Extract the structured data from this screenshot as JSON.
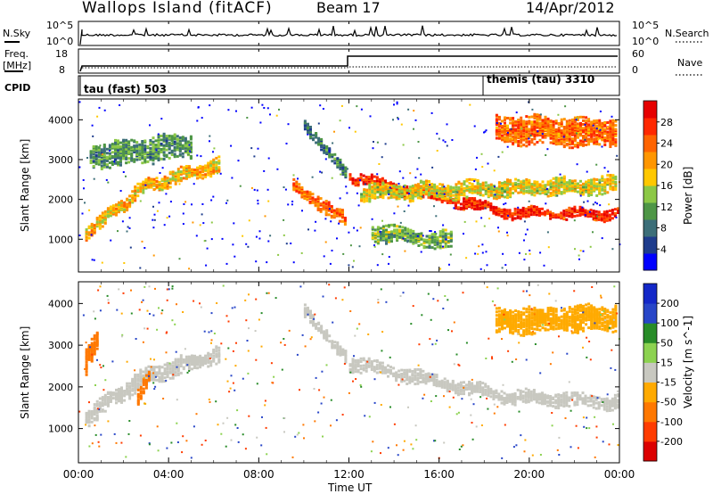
{
  "header": {
    "station": "Wallops Island (fitACF)",
    "beam": "Beam 17",
    "date": "14/Apr/2012"
  },
  "panels": {
    "nsky": {
      "label": "N.Sky",
      "right_label": "N.Search",
      "tick_labels_left": [
        "10^5",
        "10^0"
      ],
      "tick_labels_right": [
        "10^5",
        "10^0"
      ]
    },
    "freq": {
      "label_line1": "Freq.",
      "label_line2": "[MHz]",
      "right_label": "Nave",
      "tick_labels_left": [
        "18",
        "8"
      ],
      "tick_labels_right": [
        "60",
        "0"
      ]
    },
    "cpid": {
      "label": "CPID",
      "modes": [
        {
          "text": "tau (fast) 503",
          "start": "00:00"
        },
        {
          "text": "themis (tau) 3310",
          "start": "18:00"
        }
      ]
    }
  },
  "colors": {
    "power_scale": [
      "#0000ff",
      "#1e3c8c",
      "#3c6e78",
      "#4e9646",
      "#8cc846",
      "#ffc800",
      "#ff9600",
      "#ff6400",
      "#ff2800",
      "#e60000"
    ],
    "velocity_scale": [
      "#1428c8",
      "#2846c8",
      "#288c28",
      "#8cd250",
      "#c8c8c0",
      "#ffaa00",
      "#ff7800",
      "#ff3c00",
      "#dc0000"
    ],
    "ground_scatter": "#c8c8c0"
  },
  "chart_data": [
    {
      "type": "heatmap",
      "title": "Power",
      "xlabel": "Time UT",
      "ylabel": "Slant Range [km]",
      "x_ticks": [
        "00:00",
        "04:00",
        "08:00",
        "12:00",
        "16:00",
        "20:00",
        "00:00"
      ],
      "y_ticks": [
        "1000",
        "2000",
        "3000",
        "4000"
      ],
      "ylim": [
        200,
        4500
      ],
      "colorbar": {
        "label": "Power [dB]",
        "ticks": [
          "4",
          "8",
          "12",
          "16",
          "20",
          "24",
          "28"
        ],
        "range": [
          0,
          30
        ]
      },
      "bands": [
        {
          "t": [
            0.3,
            3,
            6.2
          ],
          "r": [
            1200,
            2400,
            2900
          ],
          "width": 350,
          "value": 18
        },
        {
          "t": [
            0.5,
            5
          ],
          "r": [
            3100,
            3400
          ],
          "width": 600,
          "value": 10
        },
        {
          "t": [
            10,
            11.8
          ],
          "r": [
            3800,
            2800
          ],
          "width": 300,
          "value": 8
        },
        {
          "t": [
            9.5,
            11.8
          ],
          "r": [
            2400,
            1500
          ],
          "width": 300,
          "value": 22
        },
        {
          "t": [
            12,
            19,
            24
          ],
          "r": [
            2600,
            1700,
            1650
          ],
          "width": 250,
          "value": 26
        },
        {
          "t": [
            12.5,
            24
          ],
          "r": [
            2200,
            2400
          ],
          "width": 400,
          "value": 16
        },
        {
          "t": [
            13,
            16.5
          ],
          "r": [
            1200,
            1000
          ],
          "width": 400,
          "value": 12
        },
        {
          "t": [
            18.5,
            24
          ],
          "r": [
            3800,
            3700
          ],
          "width": 700,
          "value": 22
        }
      ]
    },
    {
      "type": "heatmap",
      "title": "Velocity",
      "xlabel": "Time UT",
      "ylabel": "Slant Range [km]",
      "x_ticks": [
        "00:00",
        "04:00",
        "08:00",
        "12:00",
        "16:00",
        "20:00",
        "00:00"
      ],
      "y_ticks": [
        "1000",
        "2000",
        "3000",
        "4000"
      ],
      "ylim": [
        200,
        4500
      ],
      "colorbar": {
        "label": "Velocity [m s^-1]",
        "ticks": [
          "200",
          "100",
          "50",
          "15",
          "-15",
          "-50",
          "-100",
          "-200"
        ],
        "range": [
          -250,
          250
        ]
      },
      "bands": [
        {
          "t": [
            0.3,
            3,
            6.2
          ],
          "r": [
            1300,
            2300,
            2800
          ],
          "width": 400,
          "value": 0
        },
        {
          "t": [
            0.3,
            0.8
          ],
          "r": [
            2600,
            3200
          ],
          "width": 600,
          "value": -60
        },
        {
          "t": [
            2.6,
            3.2
          ],
          "r": [
            1800,
            2300
          ],
          "width": 300,
          "value": -80
        },
        {
          "t": [
            10,
            11.8
          ],
          "r": [
            3800,
            2800
          ],
          "width": 300,
          "value": 0
        },
        {
          "t": [
            12,
            19,
            24
          ],
          "r": [
            2600,
            1800,
            1650
          ],
          "width": 300,
          "value": 0
        },
        {
          "t": [
            18.5,
            24
          ],
          "r": [
            3600,
            3700
          ],
          "width": 600,
          "value": -40
        }
      ]
    }
  ]
}
